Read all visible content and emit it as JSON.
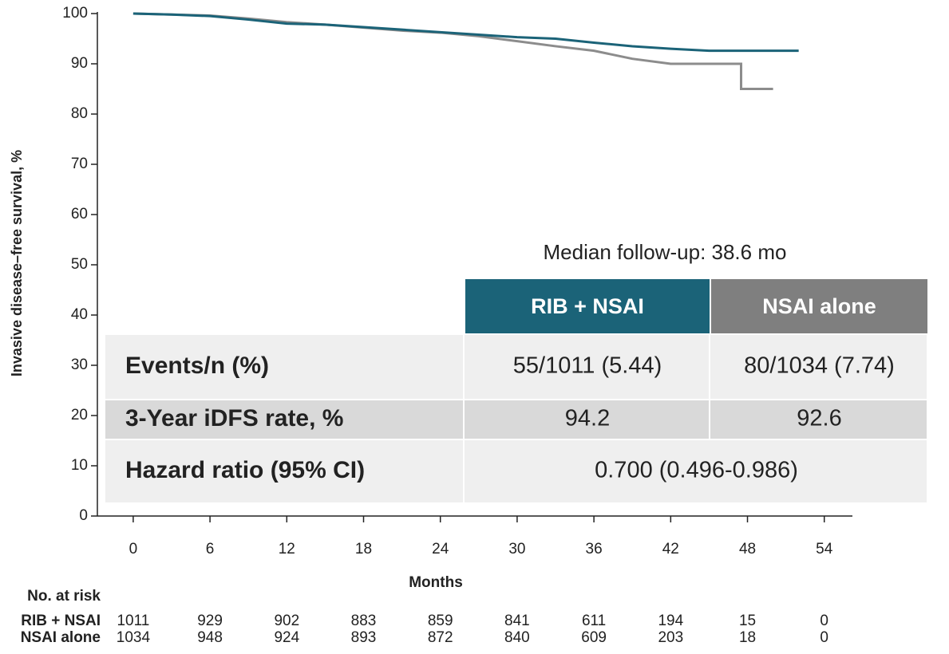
{
  "chart_data": {
    "type": "line",
    "xlabel": "Months",
    "ylabel": "Invasive disease–free survival, %",
    "xlim": [
      -2.8,
      56.2
    ],
    "ylim": [
      0,
      100
    ],
    "xticks": [
      0,
      6,
      12,
      18,
      24,
      30,
      36,
      42,
      48,
      54
    ],
    "yticks": [
      0,
      10,
      20,
      30,
      40,
      50,
      60,
      70,
      80,
      90,
      100
    ],
    "at_risk_title": "No. at risk",
    "series": [
      {
        "name": "RIB + NSAI",
        "color": "#1b6378",
        "x": [
          0,
          3,
          6,
          9,
          12,
          15,
          18,
          21,
          24,
          27,
          30,
          33,
          36,
          39,
          42,
          45,
          48,
          52
        ],
        "values": [
          100,
          99.8,
          99.5,
          98.8,
          98,
          97.8,
          97.3,
          96.8,
          96.3,
          95.8,
          95.3,
          95,
          94.2,
          93.5,
          93,
          92.6,
          92.6,
          92.6
        ],
        "at_risk": [
          1011,
          929,
          902,
          883,
          859,
          841,
          611,
          194,
          15,
          0
        ]
      },
      {
        "name": "NSAI alone",
        "color": "#8c8c8c",
        "x": [
          0,
          3,
          6,
          9,
          12,
          15,
          18,
          21,
          24,
          27,
          30,
          33,
          36,
          39,
          42,
          45,
          47.5,
          47.5,
          50
        ],
        "values": [
          100,
          99.8,
          99.6,
          99,
          98.3,
          97.8,
          97.2,
          96.6,
          96.2,
          95.5,
          94.5,
          93.5,
          92.6,
          91,
          90,
          90,
          90,
          85,
          85
        ],
        "at_risk": [
          1034,
          948,
          924,
          893,
          872,
          840,
          609,
          203,
          18,
          0
        ]
      }
    ]
  },
  "table": {
    "annotation": "Median follow-up: 38.6 mo",
    "headers": [
      "RIB + NSAI",
      "NSAI alone"
    ],
    "rows": [
      [
        "Events/n (%)",
        "55/1011 (5.44)",
        "80/1034 (7.74)"
      ],
      [
        "3-Year iDFS rate, %",
        "94.2",
        "92.6"
      ],
      [
        "Hazard ratio (95% CI)",
        "0.700 (0.496-0.986)"
      ]
    ]
  }
}
